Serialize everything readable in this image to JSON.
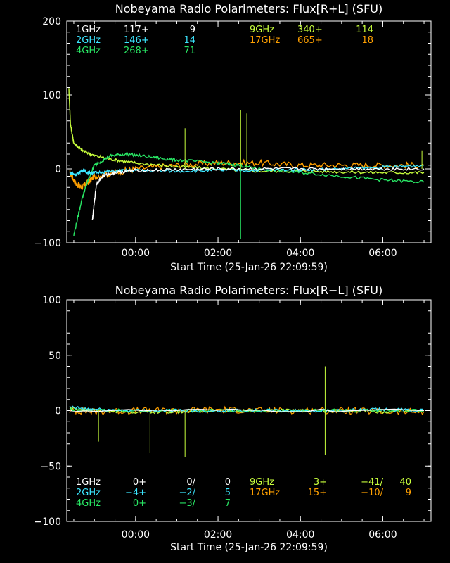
{
  "chart_data": [
    {
      "type": "line",
      "title": "Nobeyama Radio Polarimeters: Flux[R+L] (SFU)",
      "xlabel": "Start Time (25-Jan-26 22:09:59)",
      "ylabel": "",
      "ylim": [
        -100,
        200
      ],
      "yticks": [
        "200",
        "100",
        "0",
        "−100"
      ],
      "ytick_values": [
        200,
        100,
        0,
        -100
      ],
      "xlim_hours": [
        -1.67,
        7.17
      ],
      "xtick_hours": [
        0,
        2,
        4,
        6
      ],
      "xticks": [
        "00:00",
        "02:00",
        "04:00",
        "06:00"
      ],
      "legend_rows": [
        [
          {
            "name": "1GHz",
            "a": "117+",
            "b": "",
            "c": "9",
            "color": "#ffffff"
          },
          {
            "name": "9GHz",
            "a": "340+",
            "b": "",
            "c": "114",
            "color": "#c8ff3c"
          }
        ],
        [
          {
            "name": "2GHz",
            "a": "146+",
            "b": "",
            "c": "14",
            "color": "#3ce6ff"
          },
          {
            "name": "17GHz",
            "a": "665+",
            "b": "",
            "c": "18",
            "color": "#ffa000"
          }
        ],
        [
          {
            "name": "4GHz",
            "a": "268+",
            "b": "",
            "c": "71",
            "color": "#28e664"
          }
        ]
      ],
      "series": [
        {
          "name": "17GHz",
          "color": "#ffa000",
          "x": [
            -1.6,
            -1.45,
            -1.3,
            -1.15,
            -1.0,
            -0.5,
            0,
            1,
            2,
            3,
            4,
            5,
            6,
            7
          ],
          "y": [
            -5,
            -20,
            -25,
            -18,
            -10,
            -5,
            0,
            5,
            8,
            8,
            5,
            5,
            5,
            5
          ]
        },
        {
          "name": "9GHz",
          "color": "#c8ff3c",
          "x": [
            -1.62,
            -1.58,
            -1.5,
            -1.3,
            -1.0,
            -0.5,
            0,
            1,
            2,
            3,
            4,
            5,
            6,
            7
          ],
          "y": [
            110,
            60,
            35,
            25,
            18,
            12,
            8,
            3,
            0,
            -3,
            -3,
            -4,
            -5,
            -5
          ]
        },
        {
          "name": "4GHz",
          "color": "#28e664",
          "x": [
            -1.5,
            -1.3,
            -1.15,
            -1.0,
            -0.6,
            -0.2,
            0.5,
            1,
            2,
            2.5,
            3,
            4,
            5,
            6,
            7
          ],
          "y": [
            -90,
            -40,
            -15,
            5,
            18,
            20,
            15,
            12,
            8,
            5,
            0,
            -5,
            -10,
            -15,
            -18
          ]
        },
        {
          "name": "2GHz",
          "color": "#3ce6ff",
          "x": [
            -1.6,
            -1.45,
            -1.3,
            -1.15,
            -1.0,
            -0.5,
            0,
            1,
            2,
            3,
            4,
            5,
            6,
            7
          ],
          "y": [
            -5,
            -8,
            -2,
            -5,
            -5,
            -3,
            -2,
            -3,
            -2,
            -2,
            -1,
            0,
            2,
            5
          ]
        },
        {
          "name": "1GHz",
          "color": "#ffffff",
          "x": [
            -1.05,
            -0.95,
            -0.8,
            -0.5,
            0,
            1,
            2,
            3,
            4,
            5,
            6,
            7
          ],
          "y": [
            -70,
            -20,
            -10,
            -5,
            -2,
            -1,
            0,
            0,
            0,
            0,
            0,
            0
          ]
        }
      ],
      "spikes": [
        {
          "color": "#28e664",
          "x": 2.55,
          "y": -95
        },
        {
          "color": "#c8ff3c",
          "x": 2.55,
          "y": 80
        },
        {
          "color": "#c8ff3c",
          "x": 2.7,
          "y": 75
        },
        {
          "color": "#c8ff3c",
          "x": 1.2,
          "y": 55
        },
        {
          "color": "#c8ff3c",
          "x": 6.95,
          "y": 25
        }
      ]
    },
    {
      "type": "line",
      "title": "Nobeyama Radio Polarimeters: Flux[R−L] (SFU)",
      "xlabel": "Start Time (25-Jan-26 22:09:59)",
      "ylabel": "",
      "ylim": [
        -100,
        100
      ],
      "yticks": [
        "100",
        "50",
        "0",
        "−50",
        "−100"
      ],
      "ytick_values": [
        100,
        50,
        0,
        -50,
        -100
      ],
      "xlim_hours": [
        -1.67,
        7.17
      ],
      "xtick_hours": [
        0,
        2,
        4,
        6
      ],
      "xticks": [
        "00:00",
        "02:00",
        "04:00",
        "06:00"
      ],
      "legend_rows": [
        [
          {
            "name": "1GHz",
            "a": "0+",
            "b": "0/",
            "c": "0",
            "color": "#ffffff"
          },
          {
            "name": "9GHz",
            "a": "3+",
            "b": "−41/",
            "c": "40",
            "color": "#c8ff3c"
          }
        ],
        [
          {
            "name": "2GHz",
            "a": "−4+",
            "b": "−2/",
            "c": "5",
            "color": "#3ce6ff"
          },
          {
            "name": "17GHz",
            "a": "15+",
            "b": "−10/",
            "c": "9",
            "color": "#ffa000"
          }
        ],
        [
          {
            "name": "4GHz",
            "a": "0+",
            "b": "−3/",
            "c": "7",
            "color": "#28e664"
          }
        ]
      ],
      "series": [
        {
          "name": "17GHz",
          "color": "#ffa000",
          "x": [
            -1.6,
            -1.0,
            0,
            1,
            2,
            3,
            4,
            5,
            6,
            7
          ],
          "y": [
            0,
            -1,
            0,
            0,
            1,
            0,
            0,
            0,
            -1,
            -1
          ]
        },
        {
          "name": "9GHz",
          "color": "#c8ff3c",
          "x": [
            -1.6,
            -1.0,
            0,
            1,
            2,
            3,
            4,
            5,
            6,
            7
          ],
          "y": [
            2,
            0,
            -1,
            -1,
            0,
            0,
            0,
            0,
            -1,
            0
          ]
        },
        {
          "name": "4GHz",
          "color": "#28e664",
          "x": [
            -1.6,
            -1.0,
            0,
            1,
            2,
            3,
            4,
            5,
            6,
            7
          ],
          "y": [
            1,
            0,
            0,
            0,
            0,
            0,
            0,
            0,
            0,
            0
          ]
        },
        {
          "name": "2GHz",
          "color": "#3ce6ff",
          "x": [
            -1.6,
            -1.0,
            0,
            1,
            2,
            3,
            4,
            5,
            6,
            7
          ],
          "y": [
            3,
            1,
            0,
            0,
            0,
            0,
            0,
            0,
            1,
            0
          ]
        },
        {
          "name": "1GHz",
          "color": "#ffffff",
          "x": [
            -1.6,
            7
          ],
          "y": [
            0,
            0
          ]
        }
      ],
      "spikes": [
        {
          "color": "#c8ff3c",
          "x": 4.6,
          "y": 40
        },
        {
          "color": "#c8ff3c",
          "x": 4.6,
          "y": -40
        },
        {
          "color": "#c8ff3c",
          "x": 0.35,
          "y": -38
        },
        {
          "color": "#c8ff3c",
          "x": 1.2,
          "y": -42
        },
        {
          "color": "#c8ff3c",
          "x": -0.9,
          "y": -28
        }
      ]
    }
  ]
}
